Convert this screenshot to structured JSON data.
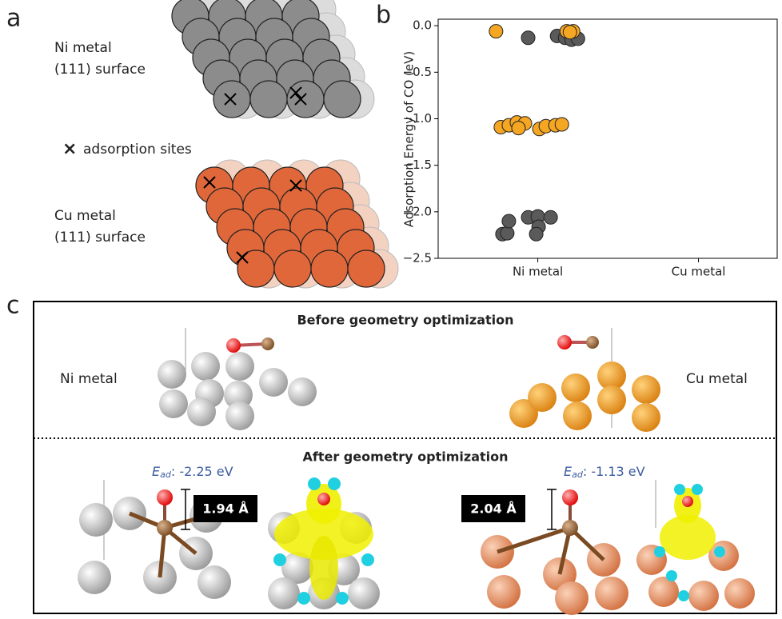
{
  "panel_a": {
    "label": "a",
    "ni_line1": "Ni metal",
    "ni_line2": "(111) surface",
    "legend_marker": "×",
    "legend_text": "adsorption sites",
    "cu_line1": "Cu metal",
    "cu_line2": "(111) surface"
  },
  "panel_b": {
    "label": "b"
  },
  "chart_data": {
    "type": "scatter",
    "ylabel": "Adsorption Energy of CO (eV)",
    "xlim": [
      -0.62,
      1.49
    ],
    "ylim": [
      -2.5,
      0.07
    ],
    "xticks": [
      {
        "value": 0,
        "label": "Ni metal"
      },
      {
        "value": 1,
        "label": "Cu metal"
      }
    ],
    "yticks": [
      {
        "value": 0,
        "label": "0.0"
      },
      {
        "value": -0.5,
        "label": "−0.5"
      },
      {
        "value": -1,
        "label": "−1.0"
      },
      {
        "value": -1.5,
        "label": "−1.5"
      },
      {
        "value": -2,
        "label": "−2.0"
      },
      {
        "value": -2.5,
        "label": "−2.5"
      }
    ],
    "series": [
      {
        "color": "#5a5a5a",
        "x": [
          -0.06,
          0.12,
          0.17,
          0.21,
          0.25,
          -0.22,
          -0.19,
          -0.18,
          -0.06,
          0,
          0.08,
          0.005,
          -0.01
        ],
        "values": [
          -0.13,
          -0.11,
          -0.13,
          -0.15,
          -0.14,
          -2.24,
          -2.23,
          -2.1,
          -2.06,
          -2.05,
          -2.06,
          -2.16,
          -2.24
        ]
      },
      {
        "color": "#f5a623",
        "x": [
          -0.26,
          0.18,
          0.22,
          0.2,
          -0.23,
          -0.18,
          -0.13,
          -0.08,
          -0.12,
          0.01,
          0.05,
          0.11,
          0.15
        ],
        "values": [
          -0.06,
          -0.06,
          -0.06,
          -0.07,
          -1.09,
          -1.07,
          -1.04,
          -1.05,
          -1.1,
          -1.11,
          -1.08,
          -1.07,
          -1.06
        ]
      }
    ]
  },
  "panel_c": {
    "label": "c",
    "before_title": "Before geometry optimization",
    "after_title": "After geometry optimization",
    "ni_label": "Ni metal",
    "cu_label": "Cu metal",
    "ni_energy": {
      "symbol": "E",
      "subscript": "ad",
      "text": ": -2.25 eV"
    },
    "ni_distance": "1.94 Å",
    "cu_energy": {
      "symbol": "E",
      "subscript": "ad",
      "text": ": -1.13 eV"
    },
    "cu_distance": "2.04 Å"
  }
}
